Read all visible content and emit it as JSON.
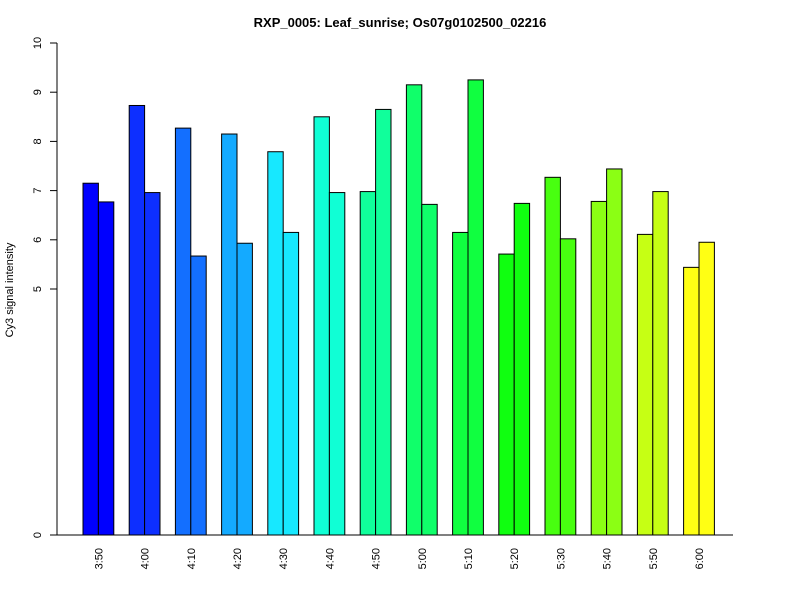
{
  "chart_data": {
    "type": "bar",
    "title": "RXP_0005: Leaf_sunrise; Os07g0102500_02216",
    "xlabel": "",
    "ylabel": "Cy3 signal intensity",
    "categories": [
      "3:50",
      "4:00",
      "4:10",
      "4:20",
      "4:30",
      "4:40",
      "4:50",
      "5:00",
      "5:10",
      "5:20",
      "5:30",
      "5:40",
      "5:50",
      "6:00"
    ],
    "y_ticks": [
      "0",
      "5",
      "6",
      "7",
      "8",
      "9",
      "10"
    ],
    "y_tick_values": [
      0,
      5,
      6,
      7,
      8,
      9,
      10
    ],
    "ylim": [
      0,
      10
    ],
    "grid": false,
    "legend": "none",
    "series": [
      {
        "values": [
          7.15,
          8.73,
          8.27,
          8.15,
          7.79,
          8.5,
          6.98,
          9.15,
          6.15,
          5.71,
          7.27,
          6.78,
          6.11,
          5.44
        ]
      },
      {
        "values": [
          6.77,
          6.96,
          5.67,
          5.93,
          6.15,
          6.96,
          8.65,
          6.72,
          9.25,
          6.74,
          6.02,
          7.44,
          6.98,
          5.95
        ]
      }
    ],
    "bar_colors": [
      [
        "#0000FF",
        "#0000FF"
      ],
      [
        "#0D2FFF",
        "#0D2FFF"
      ],
      [
        "#136FFF",
        "#136FFF"
      ],
      [
        "#14AAFF",
        "#14AAFF"
      ],
      [
        "#17E8FF",
        "#17E8FF"
      ],
      [
        "#10FFD5",
        "#10FFD5"
      ],
      [
        "#10FF9B",
        "#10FF9B"
      ],
      [
        "#10FF6A",
        "#10FF6A"
      ],
      [
        "#10FF40",
        "#10FF40"
      ],
      [
        "#10FF10",
        "#10FF10"
      ],
      [
        "#48FF10",
        "#48FF10"
      ],
      [
        "#8BFF14",
        "#8BFF14"
      ],
      [
        "#C6FF14",
        "#C6FF14"
      ],
      [
        "#FFFF14",
        "#FFFF14"
      ]
    ]
  }
}
